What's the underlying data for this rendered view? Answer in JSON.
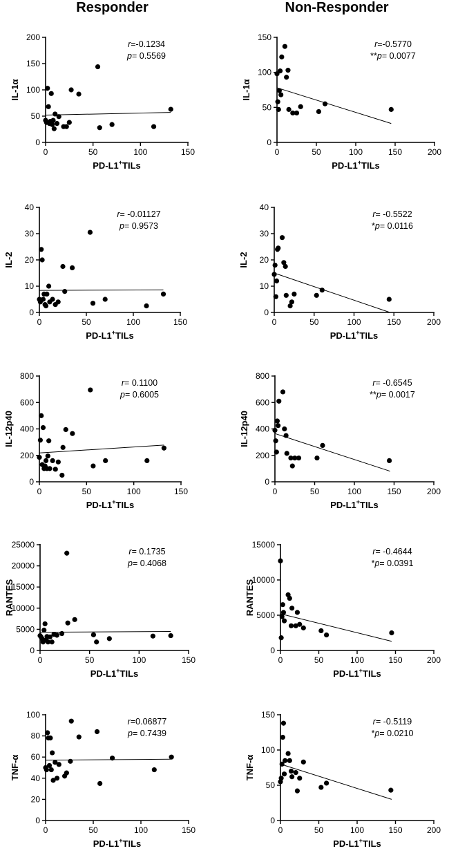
{
  "columns": {
    "left": "Responder",
    "right": "Non-Responder"
  },
  "chart_data": [
    {
      "type": "scatter",
      "group": "Responder",
      "title": "",
      "xlabel": "PD-L1+TILs",
      "ylabel": "IL-1α",
      "xlim": [
        0,
        150
      ],
      "ylim": [
        0,
        200
      ],
      "xticks": [
        0,
        50,
        100,
        150
      ],
      "yticks": [
        0,
        50,
        100,
        150,
        200
      ],
      "r_label": "r",
      "r_value": "=-0.1234",
      "p_stars": "",
      "p_label": "p",
      "p_value": "= 0.5569",
      "trend": [
        [
          0,
          52
        ],
        [
          132,
          57
        ]
      ],
      "x": [
        0,
        1,
        2,
        3,
        4,
        5,
        6,
        7,
        8,
        9,
        10,
        12,
        14,
        19,
        22,
        25,
        27,
        35,
        55,
        57,
        70,
        114,
        132
      ],
      "y": [
        42,
        38,
        103,
        68,
        36,
        40,
        93,
        34,
        42,
        26,
        54,
        36,
        49,
        30,
        30,
        38,
        100,
        92,
        144,
        28,
        34,
        30,
        63
      ]
    },
    {
      "type": "scatter",
      "group": "Non-Responder",
      "title": "",
      "xlabel": "PD-L1+TILs",
      "ylabel": "IL-1α",
      "xlim": [
        0,
        200
      ],
      "ylim": [
        0,
        150
      ],
      "xticks": [
        0,
        50,
        100,
        150,
        200
      ],
      "yticks": [
        0,
        50,
        100,
        150
      ],
      "r_label": "r",
      "r_value": "=-0.5770",
      "p_stars": "**",
      "p_label": "p",
      "p_value": "= 0.0077",
      "trend": [
        [
          0,
          78
        ],
        [
          145,
          27
        ]
      ],
      "x": [
        0,
        1,
        2,
        3,
        4,
        5,
        6,
        10,
        12,
        14,
        15,
        20,
        25,
        30,
        53,
        61,
        145
      ],
      "y": [
        98,
        58,
        47,
        74,
        102,
        68,
        122,
        137,
        93,
        103,
        47,
        42,
        42,
        51,
        44,
        55,
        47
      ]
    },
    {
      "type": "scatter",
      "group": "Responder",
      "title": "",
      "xlabel": "PD-L1+TILs",
      "ylabel": "IL-2",
      "xlim": [
        0,
        150
      ],
      "ylim": [
        0,
        40
      ],
      "xticks": [
        0,
        50,
        100,
        150
      ],
      "yticks": [
        0,
        10,
        20,
        30,
        40
      ],
      "r_label": "r",
      "r_value": "= -0.01127",
      "p_stars": "",
      "p_label": "p",
      "p_value": "= 0.9573",
      "trend": [
        [
          0,
          8.4
        ],
        [
          132,
          8.6
        ]
      ],
      "x": [
        0,
        1,
        2,
        3,
        4,
        5,
        6,
        7,
        8,
        10,
        11,
        14,
        17,
        20,
        25,
        27,
        35,
        54,
        57,
        70,
        114,
        132
      ],
      "y": [
        5,
        4,
        24,
        20,
        5,
        7,
        3,
        2.5,
        7,
        10,
        4,
        5,
        3,
        4,
        17.5,
        8,
        17,
        30.5,
        3.5,
        5,
        2.5,
        7
      ]
    },
    {
      "type": "scatter",
      "group": "Non-Responder",
      "title": "",
      "xlabel": "PD-L1+TILs",
      "ylabel": "IL-2",
      "xlim": [
        0,
        200
      ],
      "ylim": [
        0,
        40
      ],
      "xticks": [
        0,
        50,
        100,
        150,
        200
      ],
      "yticks": [
        0,
        10,
        20,
        30,
        40
      ],
      "r_label": "r",
      "r_value": "= -0.5522",
      "p_stars": "*",
      "p_label": "p",
      "p_value": "= 0.0116",
      "trend": [
        [
          0,
          15
        ],
        [
          145,
          0
        ]
      ],
      "x": [
        0,
        1,
        2,
        3,
        4,
        5,
        10,
        12,
        14,
        15,
        20,
        22,
        25,
        53,
        60,
        144
      ],
      "y": [
        14.5,
        18,
        6,
        12,
        24,
        24.5,
        28.5,
        19,
        17.5,
        6.5,
        2.5,
        4,
        7,
        6.5,
        8.5,
        5
      ]
    },
    {
      "type": "scatter",
      "group": "Responder",
      "title": "",
      "xlabel": "PD-L1+TILs",
      "ylabel": "IL-12p40",
      "xlim": [
        0,
        150
      ],
      "ylim": [
        0,
        800
      ],
      "xticks": [
        0,
        50,
        100,
        150
      ],
      "yticks": [
        0,
        200,
        400,
        600,
        800
      ],
      "r_label": "r",
      "r_value": "= 0.1100",
      "p_stars": "",
      "p_label": "p",
      "p_value": "= 0.6005",
      "trend": [
        [
          0,
          218
        ],
        [
          132,
          278
        ]
      ],
      "x": [
        0,
        1,
        2,
        3,
        4,
        5,
        6,
        7,
        8,
        9,
        10,
        11,
        14,
        17,
        20,
        24,
        25,
        28,
        35,
        54,
        57,
        70,
        114,
        132
      ],
      "y": [
        185,
        315,
        500,
        130,
        410,
        100,
        120,
        160,
        100,
        195,
        310,
        100,
        160,
        95,
        150,
        50,
        260,
        395,
        365,
        695,
        120,
        160,
        160,
        255
      ]
    },
    {
      "type": "scatter",
      "group": "Non-Responder",
      "title": "",
      "xlabel": "PD-L1+TILs",
      "ylabel": "IL-12p40",
      "xlim": [
        0,
        200
      ],
      "ylim": [
        0,
        800
      ],
      "xticks": [
        0,
        50,
        100,
        150,
        200
      ],
      "yticks": [
        0,
        200,
        400,
        600,
        800
      ],
      "r_label": "r",
      "r_value": "= -0.6545",
      "p_stars": "**",
      "p_label": "p",
      "p_value": "= 0.0017",
      "trend": [
        [
          0,
          365
        ],
        [
          145,
          80
        ]
      ],
      "x": [
        0,
        1,
        2,
        3,
        4,
        5,
        10,
        12,
        14,
        15,
        20,
        22,
        25,
        30,
        53,
        60,
        144
      ],
      "y": [
        390,
        310,
        225,
        460,
        425,
        610,
        680,
        400,
        350,
        215,
        180,
        120,
        180,
        180,
        180,
        275,
        160
      ]
    },
    {
      "type": "scatter",
      "group": "Responder",
      "title": "",
      "xlabel": "PD-L1+TILs",
      "ylabel": "RANTES",
      "xlim": [
        0,
        150
      ],
      "ylim": [
        0,
        25000
      ],
      "xticks": [
        0,
        50,
        100,
        150
      ],
      "yticks": [
        0,
        5000,
        10000,
        15000,
        20000,
        25000
      ],
      "r_label": "r",
      "r_value": "= 0.1735",
      "p_stars": "",
      "p_label": "p",
      "p_value": "= 0.4068",
      "trend": [
        [
          0,
          4300
        ],
        [
          132,
          4500
        ]
      ],
      "x": [
        0,
        1,
        2,
        3,
        4,
        5,
        6,
        7,
        8,
        10,
        12,
        14,
        17,
        22,
        27,
        28,
        35,
        54,
        57,
        70,
        114,
        132
      ],
      "y": [
        3500,
        3200,
        2800,
        2000,
        4800,
        6300,
        2500,
        3300,
        2000,
        3200,
        2000,
        3800,
        3600,
        4000,
        23000,
        6500,
        7300,
        3700,
        2000,
        2800,
        3400,
        3500
      ]
    },
    {
      "type": "scatter",
      "group": "Non-Responder",
      "title": "",
      "xlabel": "PD-L1+TILs",
      "ylabel": "RANTES",
      "xlim": [
        0,
        200
      ],
      "ylim": [
        0,
        15000
      ],
      "xticks": [
        0,
        50,
        100,
        150,
        200
      ],
      "yticks": [
        0,
        5000,
        10000,
        15000
      ],
      "r_label": "r",
      "r_value": "= -0.4644",
      "p_stars": "*",
      "p_label": "p",
      "p_value": "= 0.0391",
      "trend": [
        [
          0,
          5200
        ],
        [
          145,
          1300
        ]
      ],
      "x": [
        0,
        1,
        2,
        3,
        4,
        5,
        10,
        12,
        14,
        15,
        20,
        22,
        25,
        30,
        53,
        60,
        145
      ],
      "y": [
        12700,
        1800,
        4800,
        6500,
        5400,
        4200,
        7900,
        7400,
        3500,
        6000,
        3500,
        5400,
        3700,
        3200,
        2800,
        2200,
        2500
      ]
    },
    {
      "type": "scatter",
      "group": "Responder",
      "title": "",
      "xlabel": "PD-L1+TILs",
      "ylabel": "TNF-α",
      "xlim": [
        0,
        150
      ],
      "ylim": [
        0,
        100
      ],
      "xticks": [
        0,
        50,
        100,
        150
      ],
      "yticks": [
        0,
        20,
        40,
        60,
        80,
        100
      ],
      "r_label": "r",
      "r_value": "=0.06877",
      "p_stars": "",
      "p_label": "p",
      "p_value": "= 0.7439",
      "trend": [
        [
          0,
          57
        ],
        [
          132,
          58
        ]
      ],
      "x": [
        0,
        1,
        2,
        3,
        4,
        5,
        6,
        7,
        8,
        10,
        12,
        14,
        20,
        22,
        26,
        27,
        35,
        54,
        57,
        70,
        114,
        132
      ],
      "y": [
        50,
        48,
        83,
        78,
        52,
        78,
        48,
        64,
        38,
        55,
        40,
        53,
        42,
        45,
        56,
        94,
        79,
        84,
        35,
        59,
        48,
        60
      ]
    },
    {
      "type": "scatter",
      "group": "Non-Responder",
      "title": "",
      "xlabel": "PD-L1+TILs",
      "ylabel": "TNF-α",
      "xlim": [
        0,
        200
      ],
      "ylim": [
        0,
        150
      ],
      "xticks": [
        0,
        50,
        100,
        150,
        200
      ],
      "yticks": [
        0,
        50,
        100,
        150
      ],
      "r_label": "r",
      "r_value": "= -0.5119",
      "p_stars": "*",
      "p_label": "p",
      "p_value": "= 0.0210",
      "trend": [
        [
          0,
          80
        ],
        [
          145,
          30
        ]
      ],
      "x": [
        0,
        1,
        2,
        3,
        4,
        5,
        6,
        10,
        12,
        14,
        15,
        20,
        22,
        25,
        30,
        53,
        60,
        144
      ],
      "y": [
        55,
        60,
        80,
        118,
        138,
        66,
        85,
        95,
        85,
        70,
        62,
        68,
        42,
        60,
        83,
        47,
        53,
        43
      ]
    }
  ]
}
